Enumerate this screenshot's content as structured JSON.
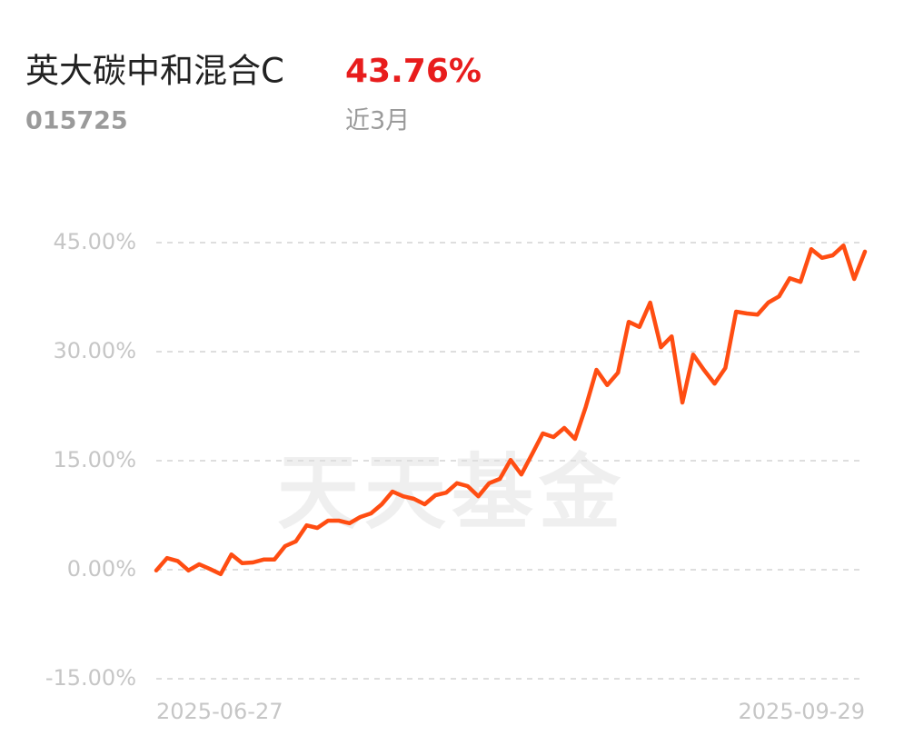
{
  "chart_data": {
    "type": "line",
    "title": "英大碳中和混合C",
    "return": "43.76%",
    "code": "015725",
    "period": "近3月",
    "watermark": "天天基金",
    "categories": [
      "2025-06-27",
      null,
      null,
      null,
      null,
      null,
      null,
      null,
      null,
      null,
      null,
      null,
      null,
      null,
      null,
      null,
      null,
      null,
      null,
      null,
      null,
      null,
      null,
      null,
      null,
      null,
      null,
      null,
      null,
      null,
      null,
      null,
      null,
      null,
      null,
      null,
      null,
      null,
      null,
      null,
      null,
      null,
      null,
      null,
      null,
      null,
      null,
      null,
      null,
      null,
      null,
      null,
      null,
      null,
      null,
      null,
      null,
      null,
      null,
      null,
      null,
      null,
      null,
      null,
      null,
      null,
      "2025-09-29"
    ],
    "series": [
      {
        "name": "英大碳中和混合C",
        "color": "#ff4d12",
        "values": [
          -0.1,
          1.6,
          1.2,
          -0.1,
          0.75,
          0.1,
          -0.6,
          2.1,
          0.9,
          1.0,
          1.4,
          1.4,
          3.25,
          3.9,
          6.1,
          5.75,
          6.75,
          6.75,
          6.4,
          7.25,
          7.75,
          9.0,
          10.75,
          10.1,
          9.75,
          9.0,
          10.25,
          10.6,
          11.9,
          11.5,
          10.1,
          11.9,
          12.5,
          15.1,
          13.1,
          15.9,
          18.75,
          18.25,
          19.5,
          18.0,
          22.4,
          27.5,
          25.4,
          27.1,
          34.1,
          33.4,
          36.75,
          30.6,
          32.1,
          23.0,
          29.6,
          27.5,
          25.6,
          27.75,
          35.5,
          35.25,
          35.1,
          36.75,
          37.6,
          40.1,
          39.6,
          44.1,
          42.9,
          43.25,
          44.6,
          40.0,
          43.76
        ]
      }
    ],
    "ylim": [
      -15,
      45
    ],
    "yticks": [
      {
        "value": 45,
        "label": "45.00%"
      },
      {
        "value": 30,
        "label": "30.00%"
      },
      {
        "value": 15,
        "label": "15.00%"
      },
      {
        "value": 0,
        "label": "0.00%"
      },
      {
        "value": -15,
        "label": "-15.00%"
      }
    ],
    "grid": true
  }
}
